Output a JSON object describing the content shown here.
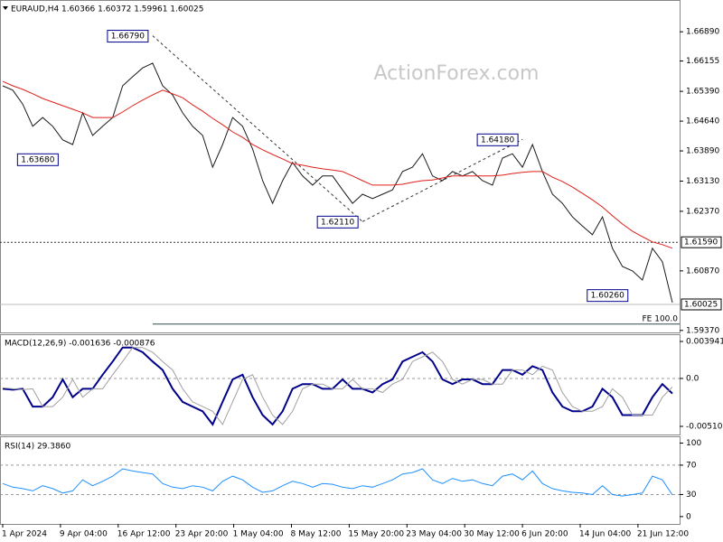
{
  "chart_data": [
    {
      "type": "line",
      "title": "EURAUD,H4  1.60366 1.60372 1.59961 1.60025",
      "watermark": "ActionForex.com",
      "categories": [
        "1 Apr 2024",
        null,
        null,
        null,
        null,
        null,
        "9 Apr 04:00",
        null,
        null,
        null,
        null,
        null,
        "16 Apr 12:00",
        null,
        null,
        null,
        null,
        null,
        "23 Apr 20:00",
        null,
        null,
        null,
        null,
        null,
        "1 May 04:00",
        null,
        null,
        null,
        null,
        null,
        "8 May 12:00",
        null,
        null,
        null,
        null,
        null,
        "15 May 20:00",
        null,
        null,
        null,
        null,
        null,
        "23 May 04:00",
        null,
        null,
        null,
        null,
        null,
        "30 May 12:00",
        null,
        null,
        null,
        null,
        null,
        "6 Jun 20:00",
        null,
        null,
        null,
        null,
        null,
        "14 Jun 04:00",
        null,
        null,
        null,
        null,
        null,
        "21 Jun 12:00",
        null
      ],
      "series": [
        {
          "color": "#1a1a1a",
          "values": [
            1.6553,
            1.6542,
            1.6507,
            1.6451,
            1.6473,
            1.6451,
            1.6417,
            1.6405,
            1.6485,
            1.6428,
            1.6451,
            1.6473,
            1.6553,
            1.6576,
            1.6598,
            1.661,
            1.6553,
            1.653,
            1.6485,
            1.6451,
            1.6428,
            1.6348,
            1.6405,
            1.6473,
            1.6451,
            1.6394,
            1.6314,
            1.6257,
            1.6314,
            1.636,
            1.6326,
            1.6303,
            1.6326,
            1.6326,
            1.6291,
            1.6257,
            1.628,
            1.6269,
            1.628,
            1.6291,
            1.6337,
            1.6348,
            1.6382,
            1.6326,
            1.6314,
            1.6337,
            1.6326,
            1.6337,
            1.6314,
            1.6303,
            1.6371,
            1.6382,
            1.6348,
            1.6405,
            1.6337,
            1.628,
            1.6257,
            1.6223,
            1.62,
            1.6178,
            1.6223,
            1.6144,
            1.6098,
            1.6087,
            1.6064,
            1.6144,
            1.611,
            1.6007
          ]
        },
        {
          "color": "#e0201b",
          "values": [
            1.6564,
            1.6553,
            1.6544,
            1.6533,
            1.6521,
            1.6512,
            1.6503,
            1.6494,
            1.6485,
            1.6473,
            1.6473,
            1.6473,
            1.6487,
            1.6503,
            1.6517,
            1.653,
            1.6542,
            1.6533,
            1.6523,
            1.6505,
            1.6489,
            1.6471,
            1.6455,
            1.6437,
            1.6423,
            1.6405,
            1.6392,
            1.638,
            1.6369,
            1.6357,
            1.6353,
            1.6348,
            1.6344,
            1.6341,
            1.6337,
            1.6326,
            1.6314,
            1.6303,
            1.6303,
            1.6303,
            1.6305,
            1.631,
            1.6314,
            1.6316,
            1.6321,
            1.6326,
            1.6326,
            1.6326,
            1.6326,
            1.6326,
            1.6328,
            1.6332,
            1.6335,
            1.6337,
            1.6337,
            1.6323,
            1.6312,
            1.6298,
            1.6282,
            1.6266,
            1.6248,
            1.6226,
            1.6205,
            1.6187,
            1.6173,
            1.616,
            1.6153,
            1.6144
          ]
        }
      ],
      "ylim": [
        1.5932,
        1.6769
      ],
      "yticks": [
        {
          "value": 1.6689,
          "label": "1.66890"
        },
        1.66155,
        {
          "value": 1.6539,
          "label": "1.65390"
        },
        {
          "value": 1.6464,
          "label": "1.64640"
        },
        {
          "value": 1.6389,
          "label": "1.63890"
        },
        {
          "value": 1.6313,
          "label": "1.63130"
        },
        {
          "value": 1.6237,
          "label": "1.62370"
        },
        {
          "value": 1.6087,
          "label": "1.60870"
        },
        {
          "value": 1.5937,
          "label": "1.59370"
        }
      ],
      "annotations": [
        {
          "label": "1.66790",
          "value": 1.6679,
          "at": 15
        },
        {
          "label": "1.63680",
          "value": 1.6368,
          "at": 6
        },
        {
          "label": "1.62110",
          "value": 1.6211,
          "at": 36
        },
        {
          "label": "1.64180",
          "value": 1.6418,
          "at": 52
        },
        {
          "label": "1.60260",
          "value": 1.6026,
          "at": 63
        }
      ],
      "price_tags": [
        {
          "value": 1.6159,
          "label": "1.61590",
          "line": "dotted"
        },
        {
          "value": 1.60025,
          "label": "1.60025",
          "line": "solid"
        }
      ],
      "fibonacci": {
        "value": 1.5953,
        "label": "FE 100.0"
      }
    },
    {
      "type": "line",
      "title": "MACD(12,26,9) -0.001636 -0.000876",
      "series": [
        {
          "color": "#00008b",
          "values": [
            -0.0011,
            -0.0012,
            -0.0011,
            -0.003,
            -0.003,
            -0.002,
            -0.0001,
            -0.002,
            -0.0011,
            -0.0011,
            0.0004,
            0.0018,
            0.0033,
            0.0033,
            0.0028,
            0.0018,
            0.0009,
            -0.0011,
            -0.0025,
            -0.003,
            -0.0035,
            -0.0049,
            -0.0025,
            -0.0001,
            0.0004,
            -0.002,
            -0.0039,
            -0.0049,
            -0.0035,
            -0.0011,
            -0.0006,
            -0.0006,
            -0.0011,
            -0.0011,
            -0.0001,
            -0.0011,
            -0.0011,
            -0.0015,
            -0.0006,
            -0.0001,
            0.0018,
            0.0023,
            0.0028,
            0.0018,
            -0.0001,
            -0.0006,
            -0.0001,
            -0.0001,
            -0.0006,
            -0.0006,
            0.0009,
            0.0009,
            0.0004,
            0.0013,
            0.0009,
            -0.0015,
            -0.003,
            -0.0035,
            -0.0035,
            -0.003,
            -0.0011,
            -0.002,
            -0.0039,
            -0.0039,
            -0.0039,
            -0.002,
            -0.0006,
            -0.0016
          ]
        },
        {
          "color": "#a0a0a0",
          "values": [
            -0.001,
            -0.0011,
            -0.0012,
            -0.0011,
            -0.003,
            -0.003,
            -0.002,
            -0.0001,
            -0.002,
            -0.0011,
            -0.0011,
            0.0004,
            0.0018,
            0.0033,
            0.0033,
            0.0028,
            0.0018,
            0.0009,
            -0.0011,
            -0.0025,
            -0.003,
            -0.0035,
            -0.0049,
            -0.0025,
            -0.0001,
            0.0004,
            -0.002,
            -0.0039,
            -0.0049,
            -0.0035,
            -0.0011,
            -0.0006,
            -0.0006,
            -0.0011,
            -0.0011,
            -0.0001,
            -0.0011,
            -0.0011,
            -0.0015,
            -0.0006,
            -0.0001,
            0.0018,
            0.0023,
            0.0028,
            0.0018,
            -0.0001,
            -0.0006,
            -0.0001,
            -0.0001,
            -0.0006,
            -0.0006,
            0.0009,
            0.0009,
            0.0004,
            0.0013,
            0.0009,
            -0.0015,
            -0.003,
            -0.0035,
            -0.0035,
            -0.003,
            -0.0011,
            -0.002,
            -0.0039,
            -0.0039,
            -0.0039,
            -0.002,
            -0.0009
          ]
        }
      ],
      "ylim": [
        -0.00597,
        0.00471
      ],
      "yticks": [
        0.003941,
        {
          "value": 0,
          "label": "0.0"
        },
        -0.005103
      ],
      "levels": [
        0
      ]
    },
    {
      "type": "line",
      "title": "RSI(14) 29.3860",
      "series": [
        {
          "color": "#1e90ff",
          "values": [
            45,
            40,
            38,
            35,
            42,
            38,
            32,
            35,
            50,
            42,
            48,
            55,
            65,
            62,
            60,
            58,
            45,
            40,
            38,
            42,
            40,
            35,
            48,
            55,
            50,
            40,
            33,
            35,
            42,
            48,
            45,
            40,
            45,
            44,
            40,
            38,
            42,
            40,
            45,
            50,
            58,
            60,
            65,
            50,
            45,
            52,
            48,
            50,
            45,
            42,
            55,
            58,
            50,
            62,
            45,
            38,
            35,
            33,
            32,
            30,
            42,
            30,
            28,
            30,
            32,
            55,
            50,
            29.4
          ]
        }
      ],
      "ylim": [
        -10,
        108
      ],
      "yticks": [
        100,
        70,
        30,
        0
      ],
      "levels": [
        70,
        30
      ]
    }
  ]
}
